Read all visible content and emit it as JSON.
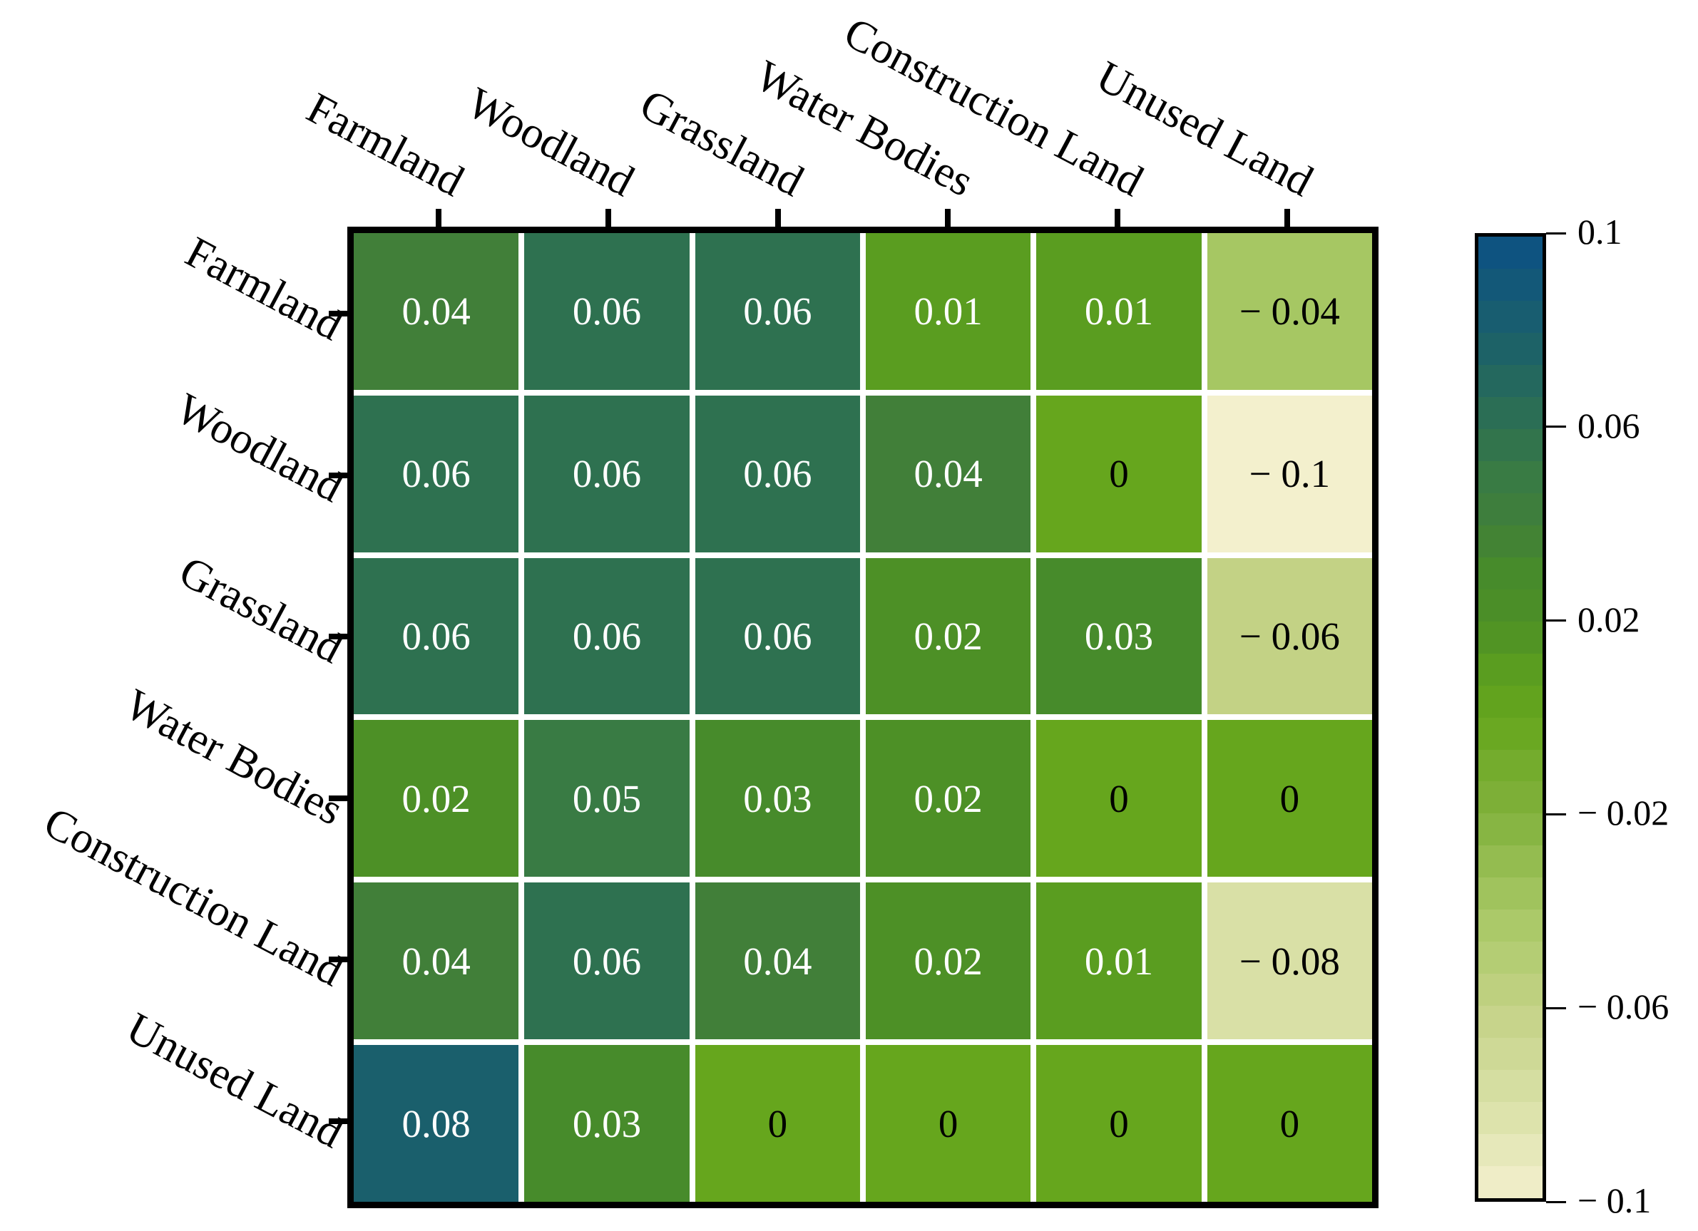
{
  "chart_data": {
    "type": "heatmap",
    "title": "",
    "col_labels": [
      "Farmland",
      "Woodland",
      "Grassland",
      "Water Bodies",
      "Construction Land",
      "Unused Land"
    ],
    "row_labels": [
      "Farmland",
      "Woodland",
      "Grassland",
      "Water Bodies",
      "Construction Land",
      "Unused Land"
    ],
    "values": [
      [
        0.04,
        0.06,
        0.06,
        0.01,
        0.01,
        -0.04
      ],
      [
        0.06,
        0.06,
        0.06,
        0.04,
        0.0,
        -0.1
      ],
      [
        0.06,
        0.06,
        0.06,
        0.02,
        0.03,
        -0.06
      ],
      [
        0.02,
        0.05,
        0.03,
        0.02,
        0.0,
        0.0
      ],
      [
        0.04,
        0.06,
        0.04,
        0.02,
        0.01,
        -0.08
      ],
      [
        0.08,
        0.03,
        0.0,
        0.0,
        0.0,
        0.0
      ]
    ],
    "cell_text": [
      [
        "0.04",
        "0.06",
        "0.06",
        "0.01",
        "0.01",
        "− 0.04"
      ],
      [
        "0.06",
        "0.06",
        "0.06",
        "0.04",
        "0",
        "− 0.1"
      ],
      [
        "0.06",
        "0.06",
        "0.06",
        "0.02",
        "0.03",
        "− 0.06"
      ],
      [
        "0.02",
        "0.05",
        "0.03",
        "0.02",
        "0",
        "0"
      ],
      [
        "0.04",
        "0.06",
        "0.04",
        "0.02",
        "0.01",
        "− 0.08"
      ],
      [
        "0.08",
        "0.03",
        "0",
        "0",
        "0",
        "0"
      ]
    ],
    "colorbar": {
      "vmin": -0.1,
      "vmax": 0.1,
      "levels": 30,
      "position": "right",
      "ticks": [
        {
          "value": 0.1,
          "label": "0.1"
        },
        {
          "value": 0.06,
          "label": "0.06"
        },
        {
          "value": 0.02,
          "label": "0.02"
        },
        {
          "value": -0.02,
          "label": "− 0.02"
        },
        {
          "value": -0.06,
          "label": "− 0.06"
        },
        {
          "value": -0.1,
          "label": "− 0.1"
        }
      ]
    },
    "colormap_stops": [
      {
        "v": -0.1,
        "c": "#f3f0cd"
      },
      {
        "v": -0.08,
        "c": "#d9e0a6"
      },
      {
        "v": -0.06,
        "c": "#c3d285"
      },
      {
        "v": -0.04,
        "c": "#a6c763"
      },
      {
        "v": -0.02,
        "c": "#81b13c"
      },
      {
        "v": 0.0,
        "c": "#66a61d"
      },
      {
        "v": 0.01,
        "c": "#5a9d20"
      },
      {
        "v": 0.02,
        "c": "#4d9026"
      },
      {
        "v": 0.03,
        "c": "#478b2b"
      },
      {
        "v": 0.04,
        "c": "#417f39"
      },
      {
        "v": 0.05,
        "c": "#397b44"
      },
      {
        "v": 0.06,
        "c": "#2e7150"
      },
      {
        "v": 0.08,
        "c": "#1a5f6c"
      },
      {
        "v": 0.1,
        "c": "#0c5084"
      }
    ],
    "styles": {
      "cell_text_positive": "#ffffff",
      "cell_text_nonpositive": "#000000",
      "grid_color": "#ffffff",
      "frame_color": "#000000",
      "background": "#ffffff"
    },
    "grid": true,
    "legend_position": "right-colorbar"
  }
}
